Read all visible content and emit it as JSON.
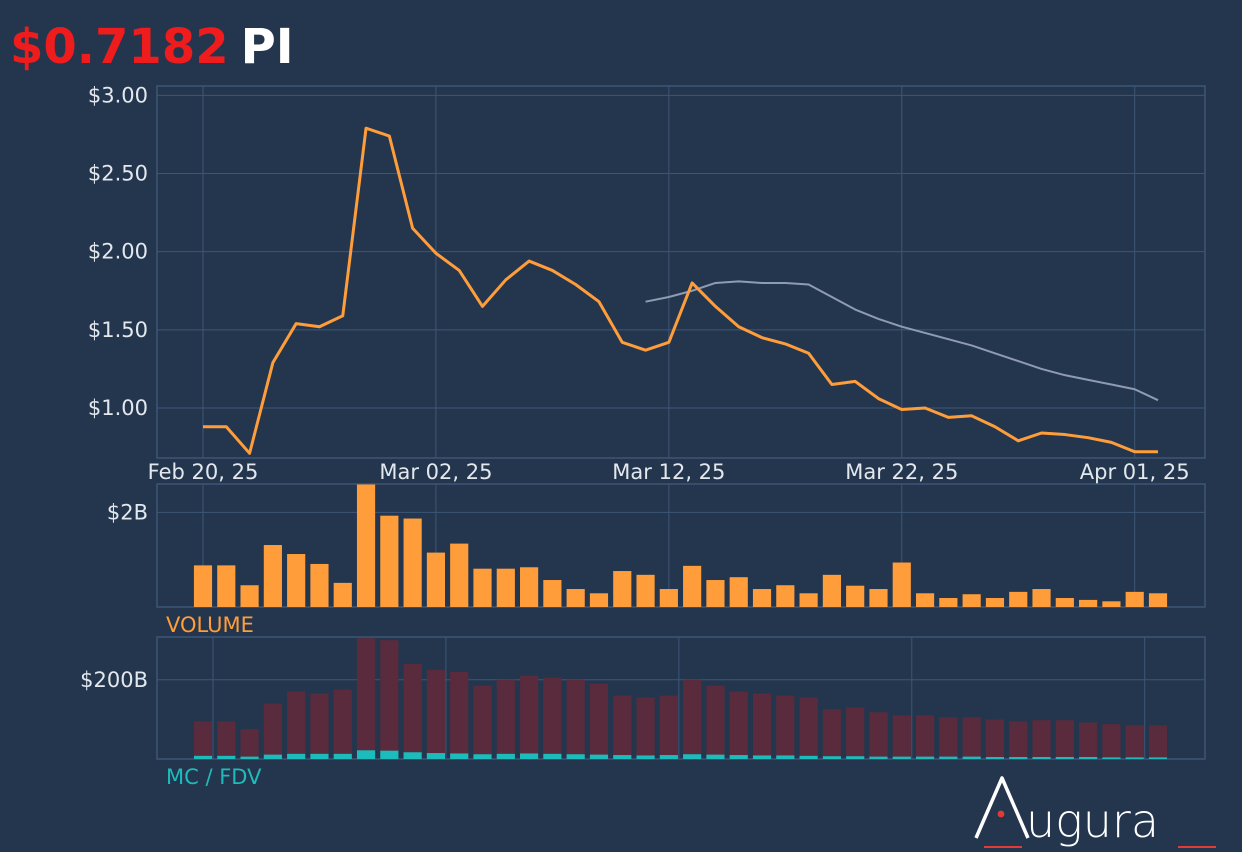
{
  "header": {
    "price": "$0.7182",
    "symbol": "PI"
  },
  "colors": {
    "background": "#24364d",
    "grid": "#3d5677",
    "price_line": "#ff9d3b",
    "ma_line": "#8f9bb3",
    "volume_bar": "#ff9d3b",
    "mc_bar": "#5a2b3d",
    "fdv_bar": "#1dbcbc",
    "price_text": "#ee1c1c"
  },
  "chart_data": [
    {
      "type": "line",
      "panel": "price",
      "x_tick_labels": [
        "Feb 20, 25",
        "Mar 02, 25",
        "Mar 12, 25",
        "Mar 22, 25",
        "Apr 01, 25"
      ],
      "y_tick_labels": [
        "$1.00",
        "$1.50",
        "$2.00",
        "$2.50",
        "$3.00"
      ],
      "y_ticks": [
        1.0,
        1.5,
        2.0,
        2.5,
        3.0
      ],
      "ylim": [
        0.68,
        3.06
      ],
      "grid": true,
      "series": [
        {
          "values": [
            0.88,
            0.88,
            0.71,
            1.29,
            1.54,
            1.52,
            1.59,
            2.79,
            2.74,
            2.15,
            1.99,
            1.88,
            1.65,
            1.82,
            1.94,
            1.88,
            1.79,
            1.68,
            1.42,
            1.37,
            1.42,
            1.8,
            1.65,
            1.52,
            1.45,
            1.41,
            1.35,
            1.15,
            1.17,
            1.06,
            0.99,
            1.0,
            0.94,
            0.95,
            0.88,
            0.79,
            0.84,
            0.83,
            0.81,
            0.78,
            0.72,
            0.72
          ]
        },
        {
          "start_index": 19,
          "values": [
            1.68,
            1.71,
            1.75,
            1.8,
            1.81,
            1.8,
            1.8,
            1.79,
            1.71,
            1.63,
            1.57,
            1.52,
            1.48,
            1.44,
            1.4,
            1.35,
            1.3,
            1.25,
            1.21,
            1.18,
            1.15,
            1.12,
            1.05
          ]
        }
      ]
    },
    {
      "type": "bar",
      "panel": "volume",
      "label": "VOLUME",
      "y_tick_labels": [
        "$2B"
      ],
      "y_ticks": [
        2.0
      ],
      "ylim": [
        0,
        2.6
      ],
      "values": [
        0.88,
        0.88,
        0.46,
        1.31,
        1.12,
        0.91,
        0.51,
        2.59,
        1.93,
        1.87,
        1.15,
        1.34,
        0.81,
        0.81,
        0.84,
        0.57,
        0.38,
        0.29,
        0.76,
        0.68,
        0.38,
        0.87,
        0.57,
        0.63,
        0.38,
        0.46,
        0.29,
        0.68,
        0.45,
        0.38,
        0.94,
        0.29,
        0.19,
        0.27,
        0.19,
        0.32,
        0.38,
        0.19,
        0.15,
        0.12,
        0.32,
        0.29
      ]
    },
    {
      "type": "bar",
      "panel": "mc_fdv",
      "label": "MC / FDV",
      "y_tick_labels": [
        "$200B"
      ],
      "y_ticks": [
        200
      ],
      "ylim": [
        0,
        308
      ],
      "series": [
        {
          "values": [
            95,
            95,
            75,
            140,
            170,
            165,
            175,
            305,
            300,
            240,
            225,
            220,
            185,
            200,
            210,
            205,
            200,
            190,
            160,
            155,
            160,
            200,
            185,
            170,
            165,
            160,
            155,
            125,
            130,
            118,
            110,
            110,
            105,
            105,
            100,
            95,
            98,
            98,
            92,
            88,
            85,
            85
          ]
        },
        {
          "values": [
            8,
            8,
            6,
            11,
            13,
            13,
            13,
            22,
            21,
            17,
            15,
            14,
            12,
            13,
            14,
            13,
            12,
            11,
            10,
            9,
            10,
            12,
            11,
            10,
            9,
            9,
            8,
            7,
            7,
            6,
            6,
            6,
            6,
            6,
            5,
            5,
            5,
            5,
            5,
            4,
            4,
            4
          ]
        }
      ]
    }
  ]
}
